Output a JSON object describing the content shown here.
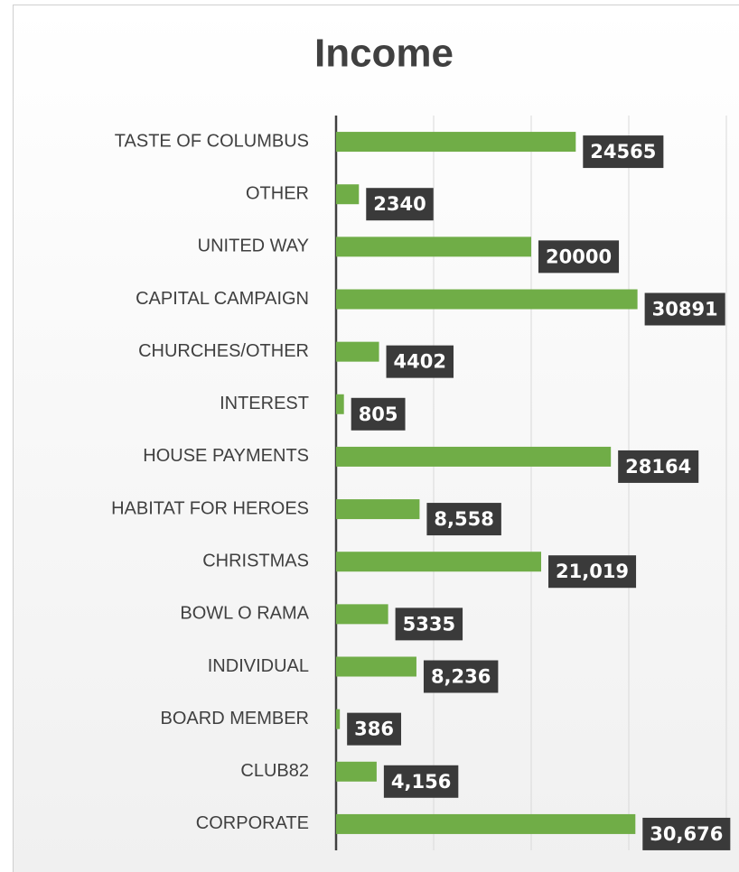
{
  "chart_data": {
    "type": "bar",
    "orientation": "horizontal",
    "title": "Income",
    "categories": [
      "TASTE OF COLUMBUS",
      "OTHER ",
      "UNITED WAY",
      "CAPITAL CAMPAIGN",
      "CHURCHES/OTHER",
      "INTEREST",
      "HOUSE PAYMENTS",
      "HABITAT FOR HEROES",
      "CHRISTMAS",
      "BOWL O RAMA",
      "INDIVIDUAL",
      "BOARD MEMBER",
      "CLUB82",
      "CORPORATE"
    ],
    "values": [
      24565,
      2340,
      20000,
      30891,
      4402,
      805,
      28164,
      8558,
      21019,
      5335,
      8236,
      386,
      4156,
      30676
    ],
    "value_labels": [
      "24565",
      "2340",
      "20000",
      "30891",
      "4402",
      "805",
      "28164",
      "8,558",
      "21,019",
      "5335",
      "8,236",
      "386",
      "4,156",
      "30,676"
    ],
    "color": "#70ad47",
    "xlim": [
      0,
      40000
    ],
    "xticks": [
      0,
      10000,
      20000,
      30000,
      40000
    ],
    "grid": true
  }
}
